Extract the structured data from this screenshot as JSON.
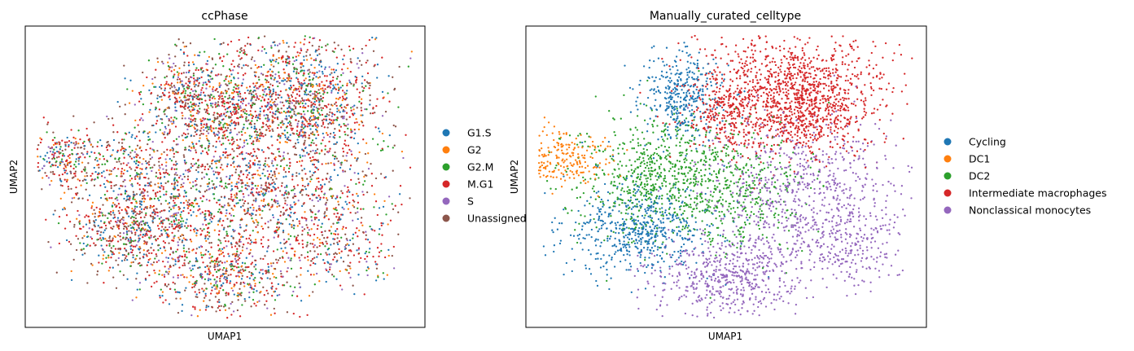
{
  "chart_data": [
    {
      "type": "scatter",
      "title": "ccPhase",
      "xlabel": "UMAP1",
      "ylabel": "UMAP2",
      "grid": false,
      "ticks": false,
      "legend_position": "right",
      "legend_title": "",
      "categories": [
        "G1.S",
        "G2",
        "G2.M",
        "M.G1",
        "S",
        "Unassigned"
      ],
      "colors": [
        "#1f77b4",
        "#ff7f0e",
        "#2ca02c",
        "#d62728",
        "#9467bd",
        "#8c564b"
      ],
      "layout": "mixed",
      "mix_weights": [
        0.16,
        0.1,
        0.12,
        0.3,
        0.08,
        0.24
      ],
      "point_count": 5200
    },
    {
      "type": "scatter",
      "title": "Manually_curated_celltype",
      "xlabel": "UMAP1",
      "ylabel": "UMAP2",
      "grid": false,
      "ticks": false,
      "legend_position": "right",
      "legend_title": "",
      "categories": [
        "Cycling",
        "DC1",
        "DC2",
        "Intermediate macrophages",
        "Nonclassical monocytes"
      ],
      "colors": [
        "#1f77b4",
        "#ff7f0e",
        "#2ca02c",
        "#d62728",
        "#9467bd"
      ],
      "layout": "clustered",
      "point_count": 5200
    }
  ]
}
